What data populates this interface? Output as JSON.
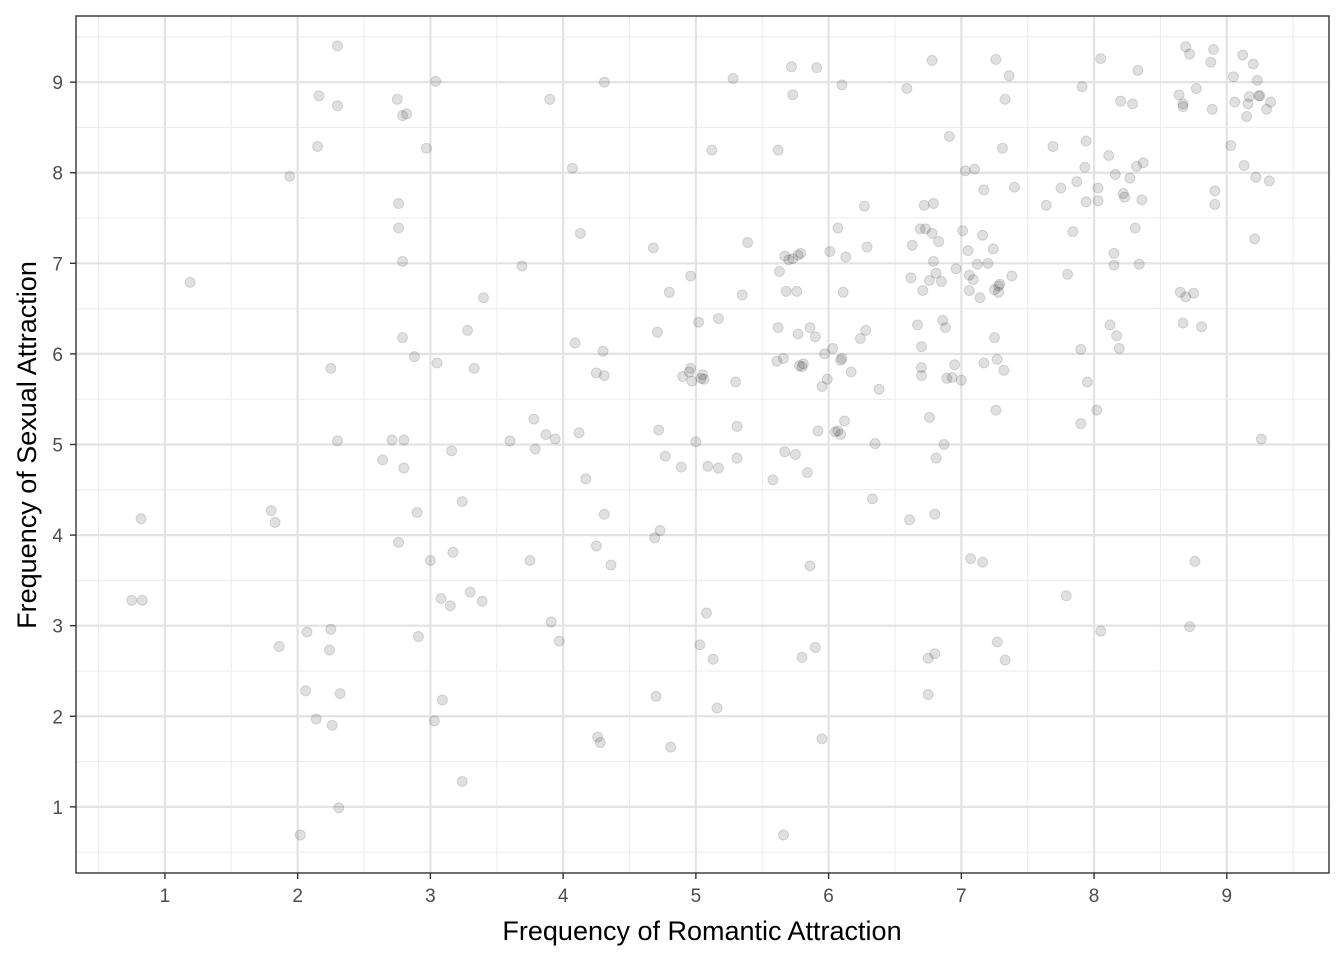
{
  "chart_data": {
    "type": "scatter",
    "title": "",
    "xlabel": "Frequency of Romantic Attraction",
    "ylabel": "Frequency of Sexual Attraction",
    "xlim": [
      0.33,
      9.77
    ],
    "ylim": [
      0.27,
      9.73
    ],
    "x_ticks": [
      1,
      2,
      3,
      4,
      5,
      6,
      7,
      8,
      9
    ],
    "y_ticks": [
      1,
      2,
      3,
      4,
      5,
      6,
      7,
      8,
      9
    ],
    "x_tick_labels": [
      "1",
      "2",
      "3",
      "4",
      "5",
      "6",
      "7",
      "8",
      "9"
    ],
    "y_tick_labels": [
      "1",
      "2",
      "3",
      "4",
      "5",
      "6",
      "7",
      "8",
      "9"
    ],
    "grid": true,
    "point_color": "#000000",
    "point_alpha": 0.12,
    "points": [
      [
        0.75,
        3.28
      ],
      [
        0.83,
        3.28
      ],
      [
        0.82,
        4.18
      ],
      [
        1.19,
        6.79
      ],
      [
        1.8,
        4.27
      ],
      [
        1.83,
        4.14
      ],
      [
        1.86,
        2.77
      ],
      [
        1.94,
        7.96
      ],
      [
        2.02,
        0.69
      ],
      [
        2.06,
        2.28
      ],
      [
        2.07,
        2.93
      ],
      [
        2.14,
        1.97
      ],
      [
        2.15,
        8.29
      ],
      [
        2.16,
        8.85
      ],
      [
        2.24,
        2.73
      ],
      [
        2.25,
        5.84
      ],
      [
        2.25,
        2.96
      ],
      [
        2.26,
        1.9
      ],
      [
        2.3,
        5.04
      ],
      [
        2.3,
        8.74
      ],
      [
        2.3,
        9.4
      ],
      [
        2.31,
        0.99
      ],
      [
        2.32,
        2.25
      ],
      [
        2.64,
        4.83
      ],
      [
        2.71,
        5.05
      ],
      [
        2.75,
        8.81
      ],
      [
        2.76,
        7.66
      ],
      [
        2.76,
        7.39
      ],
      [
        2.76,
        3.92
      ],
      [
        2.79,
        6.18
      ],
      [
        2.79,
        7.02
      ],
      [
        2.79,
        8.63
      ],
      [
        2.8,
        5.05
      ],
      [
        2.8,
        4.74
      ],
      [
        2.82,
        8.65
      ],
      [
        2.88,
        5.97
      ],
      [
        2.9,
        4.25
      ],
      [
        2.91,
        2.88
      ],
      [
        2.97,
        8.27
      ],
      [
        3.0,
        3.72
      ],
      [
        3.03,
        1.95
      ],
      [
        3.04,
        9.01
      ],
      [
        3.05,
        5.9
      ],
      [
        3.08,
        3.3
      ],
      [
        3.09,
        2.18
      ],
      [
        3.15,
        3.22
      ],
      [
        3.16,
        4.93
      ],
      [
        3.17,
        3.81
      ],
      [
        3.24,
        1.28
      ],
      [
        3.24,
        4.37
      ],
      [
        3.28,
        6.26
      ],
      [
        3.3,
        3.37
      ],
      [
        3.33,
        5.84
      ],
      [
        3.39,
        3.27
      ],
      [
        3.4,
        6.62
      ],
      [
        3.6,
        5.04
      ],
      [
        3.69,
        6.97
      ],
      [
        3.75,
        3.72
      ],
      [
        3.78,
        5.28
      ],
      [
        3.79,
        4.95
      ],
      [
        3.87,
        5.11
      ],
      [
        3.9,
        8.81
      ],
      [
        3.91,
        3.04
      ],
      [
        3.94,
        5.06
      ],
      [
        3.97,
        2.83
      ],
      [
        4.07,
        8.05
      ],
      [
        4.09,
        6.12
      ],
      [
        4.12,
        5.13
      ],
      [
        4.13,
        7.33
      ],
      [
        4.17,
        4.62
      ],
      [
        4.25,
        3.88
      ],
      [
        4.25,
        5.79
      ],
      [
        4.26,
        1.77
      ],
      [
        4.28,
        1.71
      ],
      [
        4.3,
        6.03
      ],
      [
        4.31,
        9.0
      ],
      [
        4.31,
        5.76
      ],
      [
        4.31,
        4.23
      ],
      [
        4.36,
        3.67
      ],
      [
        4.68,
        7.17
      ],
      [
        4.69,
        3.97
      ],
      [
        4.7,
        2.22
      ],
      [
        4.71,
        6.24
      ],
      [
        4.72,
        5.16
      ],
      [
        4.73,
        4.05
      ],
      [
        4.77,
        4.87
      ],
      [
        4.8,
        6.68
      ],
      [
        4.81,
        1.66
      ],
      [
        4.89,
        4.75
      ],
      [
        4.9,
        5.75
      ],
      [
        4.95,
        5.8
      ],
      [
        4.96,
        5.84
      ],
      [
        4.96,
        6.86
      ],
      [
        4.97,
        5.7
      ],
      [
        5.0,
        5.03
      ],
      [
        5.02,
        6.35
      ],
      [
        5.03,
        2.79
      ],
      [
        5.04,
        5.73
      ],
      [
        5.05,
        5.77
      ],
      [
        5.06,
        5.72
      ],
      [
        5.08,
        3.14
      ],
      [
        5.09,
        4.76
      ],
      [
        5.12,
        8.25
      ],
      [
        5.13,
        2.63
      ],
      [
        5.16,
        2.09
      ],
      [
        5.17,
        6.39
      ],
      [
        5.17,
        4.74
      ],
      [
        5.28,
        9.04
      ],
      [
        5.3,
        5.69
      ],
      [
        5.31,
        5.2
      ],
      [
        5.31,
        4.85
      ],
      [
        5.35,
        6.65
      ],
      [
        5.39,
        7.23
      ],
      [
        5.58,
        4.61
      ],
      [
        5.61,
        5.92
      ],
      [
        5.62,
        8.25
      ],
      [
        5.62,
        6.29
      ],
      [
        5.63,
        6.91
      ],
      [
        5.66,
        0.69
      ],
      [
        5.66,
        5.95
      ],
      [
        5.67,
        7.08
      ],
      [
        5.67,
        4.92
      ],
      [
        5.68,
        6.69
      ],
      [
        5.7,
        7.04
      ],
      [
        5.72,
        9.17
      ],
      [
        5.73,
        7.05
      ],
      [
        5.73,
        8.86
      ],
      [
        5.75,
        4.89
      ],
      [
        5.76,
        6.69
      ],
      [
        5.77,
        6.22
      ],
      [
        5.77,
        7.09
      ],
      [
        5.78,
        5.87
      ],
      [
        5.79,
        7.11
      ],
      [
        5.8,
        2.65
      ],
      [
        5.8,
        5.86
      ],
      [
        5.81,
        5.89
      ],
      [
        5.84,
        4.69
      ],
      [
        5.86,
        3.66
      ],
      [
        5.86,
        6.29
      ],
      [
        5.9,
        2.76
      ],
      [
        5.9,
        6.19
      ],
      [
        5.91,
        9.16
      ],
      [
        5.92,
        5.15
      ],
      [
        5.95,
        1.75
      ],
      [
        5.95,
        5.64
      ],
      [
        5.97,
        6.0
      ],
      [
        5.99,
        5.72
      ],
      [
        6.01,
        7.13
      ],
      [
        6.03,
        6.06
      ],
      [
        6.05,
        5.14
      ],
      [
        6.07,
        7.39
      ],
      [
        6.07,
        5.15
      ],
      [
        6.09,
        5.11
      ],
      [
        6.09,
        5.93
      ],
      [
        6.1,
        8.97
      ],
      [
        6.1,
        5.95
      ],
      [
        6.11,
        6.68
      ],
      [
        6.12,
        5.26
      ],
      [
        6.13,
        7.07
      ],
      [
        6.17,
        5.8
      ],
      [
        6.24,
        6.17
      ],
      [
        6.27,
        7.63
      ],
      [
        6.28,
        6.26
      ],
      [
        6.29,
        7.18
      ],
      [
        6.33,
        4.4
      ],
      [
        6.35,
        5.01
      ],
      [
        6.38,
        5.61
      ],
      [
        6.59,
        8.93
      ],
      [
        6.61,
        4.17
      ],
      [
        6.62,
        6.84
      ],
      [
        6.63,
        7.2
      ],
      [
        6.67,
        6.32
      ],
      [
        6.69,
        7.38
      ],
      [
        6.7,
        5.85
      ],
      [
        6.7,
        5.76
      ],
      [
        6.7,
        6.08
      ],
      [
        6.71,
        6.7
      ],
      [
        6.72,
        7.64
      ],
      [
        6.73,
        7.38
      ],
      [
        6.75,
        2.64
      ],
      [
        6.75,
        2.24
      ],
      [
        6.76,
        6.81
      ],
      [
        6.76,
        5.3
      ],
      [
        6.78,
        7.33
      ],
      [
        6.78,
        9.24
      ],
      [
        6.79,
        7.66
      ],
      [
        6.79,
        7.02
      ],
      [
        6.8,
        2.69
      ],
      [
        6.8,
        4.23
      ],
      [
        6.81,
        4.85
      ],
      [
        6.81,
        6.89
      ],
      [
        6.83,
        7.24
      ],
      [
        6.85,
        6.8
      ],
      [
        6.86,
        6.37
      ],
      [
        6.87,
        5.0
      ],
      [
        6.88,
        6.29
      ],
      [
        6.89,
        5.73
      ],
      [
        6.91,
        8.4
      ],
      [
        6.93,
        5.74
      ],
      [
        6.95,
        5.88
      ],
      [
        6.96,
        6.94
      ],
      [
        7.0,
        5.71
      ],
      [
        7.01,
        7.36
      ],
      [
        7.03,
        8.02
      ],
      [
        7.05,
        7.14
      ],
      [
        7.06,
        6.87
      ],
      [
        7.06,
        6.7
      ],
      [
        7.07,
        3.74
      ],
      [
        7.09,
        6.82
      ],
      [
        7.1,
        8.04
      ],
      [
        7.12,
        6.99
      ],
      [
        7.14,
        6.62
      ],
      [
        7.16,
        3.7
      ],
      [
        7.16,
        7.31
      ],
      [
        7.17,
        7.81
      ],
      [
        7.17,
        5.9
      ],
      [
        7.2,
        7.0
      ],
      [
        7.24,
        7.16
      ],
      [
        7.25,
        6.71
      ],
      [
        7.25,
        6.18
      ],
      [
        7.26,
        9.25
      ],
      [
        7.26,
        5.38
      ],
      [
        7.27,
        5.94
      ],
      [
        7.27,
        2.82
      ],
      [
        7.28,
        6.68
      ],
      [
        7.28,
        6.75
      ],
      [
        7.29,
        6.77
      ],
      [
        7.31,
        8.27
      ],
      [
        7.32,
        5.82
      ],
      [
        7.33,
        2.62
      ],
      [
        7.33,
        8.81
      ],
      [
        7.36,
        9.07
      ],
      [
        7.38,
        6.86
      ],
      [
        7.4,
        7.84
      ],
      [
        7.64,
        7.64
      ],
      [
        7.69,
        8.29
      ],
      [
        7.75,
        7.83
      ],
      [
        7.79,
        3.33
      ],
      [
        7.8,
        6.88
      ],
      [
        7.84,
        7.35
      ],
      [
        7.87,
        7.9
      ],
      [
        7.9,
        5.23
      ],
      [
        7.9,
        6.05
      ],
      [
        7.91,
        8.95
      ],
      [
        7.93,
        8.06
      ],
      [
        7.94,
        8.35
      ],
      [
        7.94,
        7.68
      ],
      [
        7.95,
        5.69
      ],
      [
        8.02,
        5.38
      ],
      [
        8.03,
        7.69
      ],
      [
        8.03,
        7.83
      ],
      [
        8.05,
        2.94
      ],
      [
        8.05,
        9.26
      ],
      [
        8.11,
        8.19
      ],
      [
        8.12,
        6.32
      ],
      [
        8.15,
        6.98
      ],
      [
        8.15,
        7.11
      ],
      [
        8.16,
        7.98
      ],
      [
        8.17,
        6.2
      ],
      [
        8.19,
        6.06
      ],
      [
        8.2,
        8.79
      ],
      [
        8.22,
        7.77
      ],
      [
        8.23,
        7.73
      ],
      [
        8.27,
        7.94
      ],
      [
        8.29,
        8.76
      ],
      [
        8.31,
        7.39
      ],
      [
        8.32,
        8.07
      ],
      [
        8.33,
        9.13
      ],
      [
        8.34,
        6.99
      ],
      [
        8.36,
        7.7
      ],
      [
        8.37,
        8.11
      ],
      [
        8.64,
        8.86
      ],
      [
        8.65,
        6.68
      ],
      [
        8.67,
        8.73
      ],
      [
        8.67,
        6.34
      ],
      [
        8.67,
        8.76
      ],
      [
        8.69,
        9.39
      ],
      [
        8.69,
        6.63
      ],
      [
        8.72,
        9.31
      ],
      [
        8.72,
        2.99
      ],
      [
        8.75,
        6.67
      ],
      [
        8.76,
        3.71
      ],
      [
        8.77,
        8.93
      ],
      [
        8.81,
        6.3
      ],
      [
        8.88,
        9.22
      ],
      [
        8.89,
        8.7
      ],
      [
        8.9,
        9.36
      ],
      [
        8.91,
        7.8
      ],
      [
        8.91,
        7.65
      ],
      [
        9.03,
        8.3
      ],
      [
        9.05,
        9.06
      ],
      [
        9.06,
        8.78
      ],
      [
        9.12,
        9.3
      ],
      [
        9.13,
        8.08
      ],
      [
        9.15,
        8.62
      ],
      [
        9.16,
        8.76
      ],
      [
        9.17,
        8.84
      ],
      [
        9.2,
        9.2
      ],
      [
        9.21,
        7.27
      ],
      [
        9.22,
        7.95
      ],
      [
        9.23,
        9.02
      ],
      [
        9.24,
        8.85
      ],
      [
        9.25,
        8.85
      ],
      [
        9.26,
        5.06
      ],
      [
        9.3,
        8.7
      ],
      [
        9.32,
        7.91
      ],
      [
        9.33,
        8.78
      ]
    ]
  }
}
